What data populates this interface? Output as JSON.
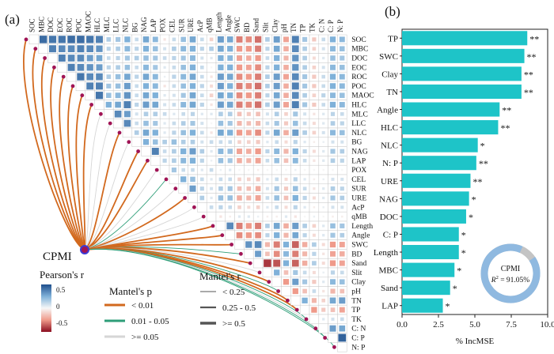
{
  "colors": {
    "bar": "#1ec4c8",
    "positive": "#2d6ba8",
    "negative": "#b2182b",
    "node": "#a01455",
    "p_lt_001": "#d2691e",
    "p_001_005": "#2e9e78",
    "p_ge_005": "#d6d6d6",
    "donut_main": "#8fb9e0",
    "donut_rest": "#c4c4c4"
  },
  "chart_data": [
    {
      "type": "heatmap",
      "panel_label": "(a)",
      "variables": [
        "SOC",
        "MBC",
        "DOC",
        "EOC",
        "ROC",
        "POC",
        "MAOC",
        "HLC",
        "MLC",
        "LLC",
        "NLC",
        "BG",
        "NAG",
        "LAP",
        "POX",
        "CEL",
        "SUR",
        "URE",
        "AcP",
        "qMB",
        "Length",
        "Angle",
        "SWC",
        "BD",
        "Sand",
        "Slit",
        "Clay",
        "pH",
        "TN",
        "TP",
        "TK",
        "C: N",
        "C: P",
        "N: P"
      ],
      "hub_label": "CPMI",
      "colorbar": {
        "title": "Pearson's r",
        "ticks": [
          "0.5",
          "0",
          "-0.5"
        ]
      },
      "legend": {
        "mantel_p_title": "Mantel's p",
        "mantel_p": [
          "< 0.01",
          "0.01 - 0.05",
          ">= 0.05"
        ],
        "mantel_r_title": "Mantel's r",
        "mantel_r": [
          "< 0.25",
          "0.25 - 0.5",
          ">= 0.5"
        ]
      },
      "hub_links": [
        {
          "var": "SOC",
          "p": "lt001",
          "r": "mid"
        },
        {
          "var": "MBC",
          "p": "lt001",
          "r": "mid"
        },
        {
          "var": "DOC",
          "p": "lt001",
          "r": "mid"
        },
        {
          "var": "EOC",
          "p": "lt001",
          "r": "mid"
        },
        {
          "var": "ROC",
          "p": "lt001",
          "r": "mid"
        },
        {
          "var": "POC",
          "p": "lt001",
          "r": "mid"
        },
        {
          "var": "MAOC",
          "p": "lt001",
          "r": "mid"
        },
        {
          "var": "HLC",
          "p": "lt001",
          "r": "mid"
        },
        {
          "var": "MLC",
          "p": "ge005",
          "r": "low"
        },
        {
          "var": "LLC",
          "p": "ge005",
          "r": "low"
        },
        {
          "var": "NLC",
          "p": "lt001",
          "r": "mid"
        },
        {
          "var": "BG",
          "p": "ge005",
          "r": "low"
        },
        {
          "var": "NAG",
          "p": "lt001",
          "r": "mid"
        },
        {
          "var": "LAP",
          "p": "lt001",
          "r": "mid"
        },
        {
          "var": "POX",
          "p": "ge005",
          "r": "low"
        },
        {
          "var": "CEL",
          "p": "001005",
          "r": "low"
        },
        {
          "var": "SUR",
          "p": "ge005",
          "r": "low"
        },
        {
          "var": "URE",
          "p": "lt001",
          "r": "mid"
        },
        {
          "var": "AcP",
          "p": "ge005",
          "r": "low"
        },
        {
          "var": "qMB",
          "p": "ge005",
          "r": "low"
        },
        {
          "var": "Length",
          "p": "lt001",
          "r": "mid"
        },
        {
          "var": "Angle",
          "p": "lt001",
          "r": "mid"
        },
        {
          "var": "SWC",
          "p": "lt001",
          "r": "mid"
        },
        {
          "var": "BD",
          "p": "001005",
          "r": "low"
        },
        {
          "var": "Sand",
          "p": "lt001",
          "r": "mid"
        },
        {
          "var": "Slit",
          "p": "ge005",
          "r": "low"
        },
        {
          "var": "Clay",
          "p": "lt001",
          "r": "mid"
        },
        {
          "var": "pH",
          "p": "001005",
          "r": "low"
        },
        {
          "var": "TN",
          "p": "lt001",
          "r": "mid"
        },
        {
          "var": "TP",
          "p": "lt001",
          "r": "mid"
        },
        {
          "var": "TK",
          "p": "001005",
          "r": "low"
        },
        {
          "var": "C: N",
          "p": "ge005",
          "r": "low"
        },
        {
          "var": "C: P",
          "p": "001005",
          "r": "low"
        },
        {
          "var": "N: P",
          "p": "001005",
          "r": "low"
        }
      ],
      "matrix_r": [
        [],
        [
          0.85
        ],
        [
          0.8,
          0.75
        ],
        [
          0.8,
          0.7,
          0.75
        ],
        [
          0.85,
          0.7,
          0.7,
          0.75
        ],
        [
          0.85,
          0.75,
          0.7,
          0.7,
          0.8
        ],
        [
          0.8,
          0.7,
          0.6,
          0.65,
          0.7,
          0.75
        ],
        [
          0.75,
          0.65,
          0.55,
          0.6,
          0.7,
          0.75,
          0.8
        ],
        [
          0.3,
          0.25,
          0.2,
          0.25,
          0.3,
          0.35,
          0.4,
          0.5
        ],
        [
          0.35,
          0.3,
          0.25,
          0.3,
          0.4,
          0.4,
          0.45,
          0.55,
          0.7
        ],
        [
          0.5,
          0.45,
          0.35,
          0.4,
          0.55,
          0.6,
          0.65,
          0.75,
          0.6,
          0.7
        ],
        [
          0.2,
          0.25,
          0.3,
          0.2,
          0.25,
          0.2,
          0.2,
          0.25,
          0.15,
          0.2,
          0.3
        ],
        [
          0.55,
          0.5,
          0.4,
          0.45,
          0.55,
          0.5,
          0.55,
          0.6,
          0.3,
          0.4,
          0.55,
          0.5
        ],
        [
          0.45,
          0.4,
          0.35,
          0.35,
          0.45,
          0.45,
          0.5,
          0.55,
          0.3,
          0.35,
          0.5,
          0.4,
          0.75
        ],
        [
          -0.1,
          0.15,
          0.2,
          0.1,
          0.05,
          -0.1,
          0.1,
          0.15,
          0.2,
          0.1,
          0.1,
          0.3,
          0.2,
          0.25
        ],
        [
          0.2,
          0.3,
          0.25,
          0.2,
          0.25,
          0.2,
          0.15,
          0.2,
          0.1,
          0.2,
          0.25,
          0.4,
          0.3,
          0.3,
          0.35
        ],
        [
          0.4,
          0.45,
          0.35,
          0.4,
          0.45,
          0.4,
          0.35,
          0.45,
          0.2,
          0.3,
          0.4,
          0.3,
          0.5,
          0.45,
          0.2,
          0.5
        ],
        [
          0.55,
          0.5,
          0.45,
          0.5,
          0.55,
          0.5,
          0.55,
          0.55,
          0.25,
          0.35,
          0.5,
          0.3,
          0.6,
          0.5,
          0.2,
          0.4,
          0.6
        ],
        [
          0.2,
          0.25,
          0.15,
          0.2,
          0.2,
          0.25,
          0.2,
          0.25,
          0.1,
          0.15,
          0.2,
          0.15,
          0.3,
          0.25,
          0.1,
          0.2,
          0.25,
          0.3
        ],
        [
          -0.2,
          0.3,
          0.1,
          0.0,
          -0.1,
          -0.15,
          -0.2,
          -0.1,
          0.1,
          0.0,
          -0.1,
          0.2,
          0.1,
          0.05,
          0.2,
          0.1,
          0.15,
          0.1,
          0.2
        ],
        [
          0.6,
          0.55,
          0.5,
          0.5,
          0.6,
          0.6,
          0.55,
          0.6,
          0.3,
          0.4,
          0.55,
          0.2,
          0.45,
          0.4,
          0.05,
          0.2,
          0.3,
          0.4,
          0.25,
          -0.1
        ],
        [
          0.55,
          0.5,
          0.45,
          0.5,
          0.55,
          0.5,
          0.5,
          0.55,
          0.3,
          0.35,
          0.5,
          0.2,
          0.4,
          0.35,
          0.1,
          0.2,
          0.35,
          0.4,
          0.2,
          -0.05,
          0.7
        ],
        [
          -0.6,
          -0.5,
          -0.45,
          -0.5,
          -0.55,
          -0.6,
          -0.55,
          -0.6,
          -0.3,
          -0.35,
          -0.5,
          -0.2,
          -0.45,
          -0.4,
          0.0,
          -0.2,
          -0.3,
          -0.4,
          -0.2,
          0.1,
          -0.6,
          -0.55
        ],
        [
          -0.55,
          -0.5,
          -0.4,
          -0.45,
          -0.5,
          -0.55,
          -0.5,
          -0.55,
          -0.25,
          -0.3,
          -0.45,
          -0.2,
          -0.4,
          -0.35,
          0.0,
          -0.2,
          -0.3,
          -0.35,
          -0.15,
          0.1,
          -0.5,
          -0.5,
          0.65
        ],
        [
          -0.65,
          -0.6,
          -0.5,
          -0.55,
          -0.6,
          -0.65,
          -0.6,
          -0.65,
          -0.3,
          -0.35,
          -0.55,
          -0.25,
          -0.5,
          -0.45,
          -0.05,
          -0.25,
          -0.4,
          -0.45,
          -0.2,
          0.05,
          -0.6,
          -0.55,
          0.7,
          0.6
        ],
        [
          0.3,
          0.25,
          0.2,
          0.25,
          0.3,
          0.3,
          0.25,
          0.3,
          0.15,
          0.2,
          0.25,
          0.1,
          0.25,
          0.2,
          0.0,
          0.1,
          0.15,
          0.2,
          0.1,
          -0.05,
          0.3,
          0.25,
          -0.35,
          -0.3,
          -0.85
        ],
        [
          0.6,
          0.55,
          0.5,
          0.5,
          0.6,
          0.6,
          0.55,
          0.6,
          0.3,
          0.35,
          0.55,
          0.2,
          0.45,
          0.4,
          0.0,
          0.2,
          0.35,
          0.4,
          0.2,
          -0.05,
          0.55,
          0.5,
          -0.6,
          -0.55,
          -0.75,
          0.5
        ],
        [
          -0.45,
          -0.4,
          -0.35,
          -0.4,
          -0.45,
          -0.4,
          -0.4,
          -0.45,
          -0.2,
          -0.25,
          -0.4,
          -0.15,
          -0.35,
          -0.3,
          0.0,
          -0.15,
          -0.25,
          -0.3,
          -0.15,
          0.1,
          -0.4,
          -0.35,
          0.5,
          0.45,
          0.5,
          -0.3,
          -0.5
        ],
        [
          0.75,
          0.7,
          0.65,
          0.65,
          0.7,
          0.75,
          0.7,
          0.75,
          0.35,
          0.4,
          0.6,
          0.25,
          0.5,
          0.45,
          0.05,
          0.25,
          0.4,
          0.5,
          0.25,
          -0.1,
          0.6,
          0.55,
          -0.7,
          -0.6,
          -0.7,
          0.35,
          0.6,
          -0.5
        ],
        [
          0.35,
          0.3,
          0.3,
          0.3,
          0.35,
          0.35,
          0.3,
          0.35,
          0.15,
          0.2,
          0.3,
          0.1,
          0.25,
          0.2,
          0.0,
          0.1,
          0.2,
          0.25,
          0.1,
          0.0,
          0.3,
          0.25,
          -0.4,
          -0.35,
          -0.4,
          0.2,
          0.35,
          -0.3,
          0.5
        ],
        [
          -0.25,
          -0.2,
          -0.15,
          -0.2,
          -0.25,
          -0.25,
          -0.2,
          -0.25,
          -0.1,
          -0.15,
          -0.2,
          -0.05,
          -0.15,
          -0.1,
          0.0,
          -0.05,
          -0.1,
          -0.15,
          -0.05,
          0.05,
          -0.2,
          -0.15,
          0.3,
          0.25,
          0.3,
          -0.15,
          -0.25,
          0.2,
          -0.35,
          -0.5
        ],
        [
          0.2,
          0.15,
          0.1,
          0.15,
          0.2,
          0.2,
          0.25,
          0.2,
          0.1,
          0.1,
          0.15,
          0.05,
          0.1,
          0.1,
          0.0,
          0.05,
          0.1,
          0.1,
          0.05,
          0.0,
          0.1,
          0.1,
          -0.15,
          -0.1,
          -0.15,
          0.05,
          0.1,
          -0.1,
          -0.2,
          -0.25,
          0.1
        ],
        [
          0.5,
          0.45,
          0.4,
          0.45,
          0.5,
          0.5,
          0.45,
          0.5,
          0.25,
          0.3,
          0.45,
          0.15,
          0.35,
          0.3,
          0.0,
          0.15,
          0.3,
          0.35,
          0.15,
          -0.05,
          0.4,
          0.35,
          -0.5,
          -0.45,
          -0.5,
          0.25,
          0.45,
          -0.35,
          0.55,
          -0.3,
          0.15,
          0.6
        ],
        [
          0.45,
          0.4,
          0.35,
          0.4,
          0.45,
          0.45,
          0.4,
          0.45,
          0.2,
          0.25,
          0.4,
          0.15,
          0.3,
          0.25,
          0.0,
          0.15,
          0.25,
          0.3,
          0.15,
          -0.05,
          0.35,
          0.3,
          -0.45,
          -0.4,
          -0.45,
          0.2,
          0.4,
          -0.3,
          0.6,
          -0.45,
          0.2,
          0.55,
          0.9
        ]
      ]
    },
    {
      "type": "bar",
      "orientation": "horizontal",
      "panel_label": "(b)",
      "categories": [
        "TP",
        "SWC",
        "Clay",
        "TN",
        "Angle",
        "HLC",
        "NLC",
        "N: P",
        "URE",
        "NAG",
        "DOC",
        "C: P",
        "Length",
        "MBC",
        "Sand",
        "LAP"
      ],
      "values": [
        8.6,
        8.4,
        8.2,
        8.2,
        6.7,
        6.6,
        5.2,
        5.1,
        4.7,
        4.6,
        4.4,
        3.9,
        3.9,
        3.6,
        3.3,
        2.8
      ],
      "significance": [
        "**",
        "**",
        "**",
        "**",
        "**",
        "**",
        "*",
        "**",
        "**",
        "*",
        "*",
        "*",
        "*",
        "*",
        "*",
        "*"
      ],
      "xlabel": "% IncMSE",
      "xlim": [
        0,
        10
      ],
      "xticks": [
        "0.0",
        "2.5",
        "5.0",
        "7.5",
        "10.0"
      ],
      "inset_donut": {
        "title": "CPMI",
        "r2_prefix": "R",
        "r2_sup": "2",
        "r2_value": " = 91.05%",
        "fraction": 0.9105
      }
    }
  ]
}
